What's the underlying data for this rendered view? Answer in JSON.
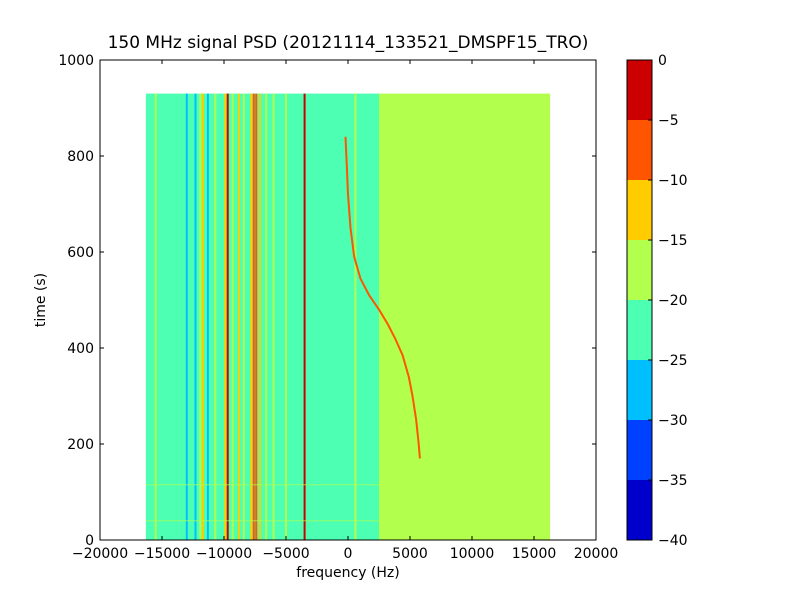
{
  "chart_data": {
    "type": "heatmap",
    "title": "150 MHz signal PSD (20121114_133521_DMSPF15_TRO)",
    "xlabel": "frequency (Hz)",
    "ylabel": "time (s)",
    "xlim": [
      -20000,
      20000
    ],
    "ylim": [
      0,
      1000
    ],
    "xticks": [
      -20000,
      -15000,
      -10000,
      -5000,
      0,
      5000,
      10000,
      15000,
      20000
    ],
    "xtick_labels": [
      "−20000",
      "−15000",
      "−10000",
      "−5000",
      "0",
      "5000",
      "10000",
      "15000",
      "20000"
    ],
    "yticks": [
      0,
      200,
      400,
      600,
      800,
      1000
    ],
    "ytick_labels": [
      "0",
      "200",
      "400",
      "600",
      "800",
      "1000"
    ],
    "data_extent": {
      "freq_min": -16300,
      "freq_max": 16300,
      "time_min": 0,
      "time_max": 930
    },
    "colorbar": {
      "min": -40,
      "max": 0,
      "ticks": [
        0,
        -5,
        -10,
        -15,
        -20,
        -25,
        -30,
        -35,
        -40
      ],
      "tick_labels": [
        "0",
        "−5",
        "−10",
        "−15",
        "−20",
        "−25",
        "−30",
        "−35",
        "−40"
      ],
      "levels": [
        {
          "from": -40,
          "to": -35,
          "color": "#0000cc"
        },
        {
          "from": -35,
          "to": -30,
          "color": "#0040ff"
        },
        {
          "from": -30,
          "to": -25,
          "color": "#00bfff"
        },
        {
          "from": -25,
          "to": -20,
          "color": "#4dffb3"
        },
        {
          "from": -20,
          "to": -15,
          "color": "#b3ff4d"
        },
        {
          "from": -15,
          "to": -10,
          "color": "#ffcc00"
        },
        {
          "from": -10,
          "to": -5,
          "color": "#ff5500"
        },
        {
          "from": -5,
          "to": 0,
          "color": "#cc0000"
        }
      ]
    },
    "background_regions": [
      {
        "freq_from": -16300,
        "freq_to": 2500,
        "level_db": -22
      },
      {
        "freq_from": 2500,
        "freq_to": 16300,
        "level_db": -18
      }
    ],
    "vertical_lines": [
      {
        "freq": -15500,
        "level_db": -18
      },
      {
        "freq": -13000,
        "level_db": -27
      },
      {
        "freq": -12300,
        "level_db": -28
      },
      {
        "freq": -11900,
        "level_db": -17
      },
      {
        "freq": -11700,
        "level_db": -14
      },
      {
        "freq": -11300,
        "level_db": -27
      },
      {
        "freq": -10700,
        "level_db": -17
      },
      {
        "freq": -9900,
        "level_db": -12
      },
      {
        "freq": -9700,
        "level_db": -5
      },
      {
        "freq": -9300,
        "level_db": -17
      },
      {
        "freq": -8800,
        "level_db": -14
      },
      {
        "freq": -8400,
        "level_db": -17
      },
      {
        "freq": -7800,
        "level_db": -12
      },
      {
        "freq": -7600,
        "level_db": -8
      },
      {
        "freq": -7400,
        "level_db": -8
      },
      {
        "freq": -7100,
        "level_db": -12
      },
      {
        "freq": -6600,
        "level_db": -17
      },
      {
        "freq": -6000,
        "level_db": -18
      },
      {
        "freq": -5000,
        "level_db": -18
      },
      {
        "freq": -3500,
        "level_db": -5
      },
      {
        "freq": 600,
        "level_db": -18
      }
    ],
    "traces": [
      {
        "level_db": -10,
        "points": [
          [
            -200,
            840
          ],
          [
            -100,
            780
          ],
          [
            0,
            720
          ],
          [
            200,
            650
          ],
          [
            500,
            590
          ],
          [
            1000,
            545
          ],
          [
            1700,
            510
          ],
          [
            2500,
            480
          ],
          [
            3200,
            450
          ],
          [
            3800,
            420
          ],
          [
            4400,
            385
          ],
          [
            4900,
            340
          ],
          [
            5200,
            300
          ],
          [
            5500,
            250
          ],
          [
            5700,
            200
          ],
          [
            5800,
            170
          ]
        ]
      }
    ],
    "horizontal_lines": [
      {
        "time": 115,
        "level_db": -18
      },
      {
        "time": 40,
        "level_db": -18
      }
    ]
  }
}
